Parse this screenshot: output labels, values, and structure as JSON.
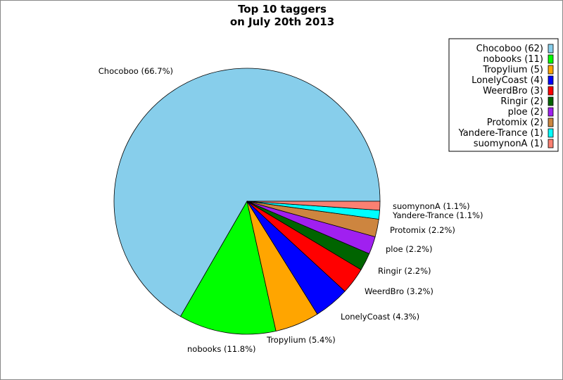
{
  "chart_data": {
    "type": "pie",
    "title_lines": [
      "Top 10 taggers",
      "on July 20th 2013"
    ],
    "legend_position": "top-right",
    "slices": [
      {
        "name": "Chocoboo",
        "value": 62,
        "percent": "66.7%",
        "color": "#87CEEB",
        "legend": "Chocoboo (62)",
        "label": "Chocoboo (66.7%)"
      },
      {
        "name": "nobooks",
        "value": 11,
        "percent": "11.8%",
        "color": "#00FF00",
        "legend": "nobooks (11)",
        "label": "nobooks (11.8%)"
      },
      {
        "name": "Tropylium",
        "value": 5,
        "percent": "5.4%",
        "color": "#FFA500",
        "legend": "Tropylium (5)",
        "label": "Tropylium (5.4%)"
      },
      {
        "name": "LonelyCoast",
        "value": 4,
        "percent": "4.3%",
        "color": "#0000FF",
        "legend": "LonelyCoast (4)",
        "label": "LonelyCoast (4.3%)"
      },
      {
        "name": "WeerdBro",
        "value": 3,
        "percent": "3.2%",
        "color": "#FF0000",
        "legend": "WeerdBro (3)",
        "label": "WeerdBro (3.2%)"
      },
      {
        "name": "Ringir",
        "value": 2,
        "percent": "2.2%",
        "color": "#006400",
        "legend": "Ringir (2)",
        "label": "Ringir (2.2%)"
      },
      {
        "name": "ploe",
        "value": 2,
        "percent": "2.2%",
        "color": "#A020F0",
        "legend": "ploe (2)",
        "label": "ploe (2.2%)"
      },
      {
        "name": "Protomix",
        "value": 2,
        "percent": "2.2%",
        "color": "#CD853F",
        "legend": "Protomix (2)",
        "label": "Protomix (2.2%)"
      },
      {
        "name": "Yandere-Trance",
        "value": 1,
        "percent": "1.1%",
        "color": "#00FFFF",
        "legend": "Yandere-Trance (1)",
        "label": "Yandere-Trance (1.1%)"
      },
      {
        "name": "suomynonA",
        "value": 1,
        "percent": "1.1%",
        "color": "#FA8072",
        "legend": "suomynonA (1)",
        "label": "suomynonA (1.1%)"
      }
    ]
  }
}
